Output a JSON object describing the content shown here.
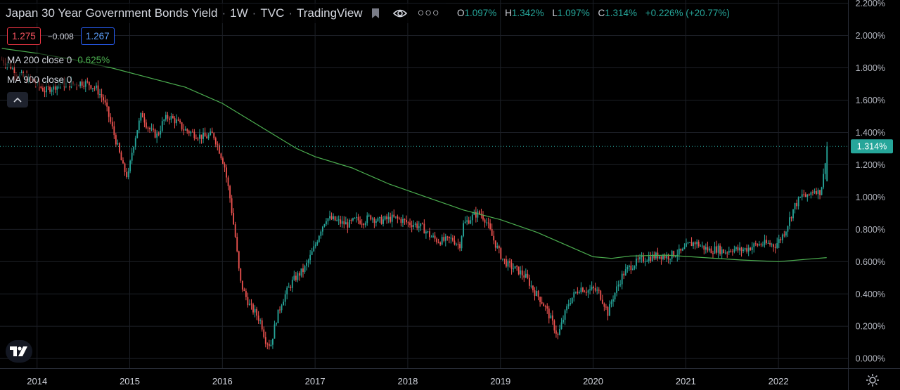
{
  "header": {
    "title": "Japan 30 Year Government Bonds Yield",
    "interval": "1W",
    "source": "TVC",
    "platform": "TradingView",
    "icons": [
      "flag-icon",
      "eye-icon",
      "more-icon"
    ]
  },
  "ohlc": {
    "open_label": "O",
    "open_value": "1.097%",
    "high_label": "H",
    "high_value": "1.342%",
    "low_label": "L",
    "low_value": "1.097%",
    "close_label": "C",
    "close_value": "1.314%",
    "change": "+0.226% (+20.77%)"
  },
  "prices": {
    "bid": "1.275",
    "spread": "−0.008",
    "ask": "1.267"
  },
  "indicators": {
    "ma200_label": "MA 200 close 0",
    "ma200_value": "0.625%",
    "ma900_label": "MA 900 close 0"
  },
  "colors": {
    "up": "#26a69a",
    "down": "#ef5350",
    "ma200": "#4caf50",
    "last_price_bg": "#26a69a",
    "grid": "#1c1f26",
    "text": "#d1d4dc",
    "background": "#000000"
  },
  "chart_data": {
    "type": "candlestick",
    "interval": "1W",
    "x_ticks": [
      "2014",
      "2015",
      "2016",
      "2017",
      "2018",
      "2019",
      "2020",
      "2021",
      "2022"
    ],
    "x_range": [
      2013.6,
      2022.75
    ],
    "y_ticks": [
      "0.000%",
      "0.200%",
      "0.400%",
      "0.600%",
      "0.800%",
      "1.000%",
      "1.200%",
      "1.400%",
      "1.600%",
      "1.800%",
      "2.000%",
      "2.200%"
    ],
    "ylim": [
      -0.06,
      2.22
    ],
    "last_price": 1.314,
    "last_price_label": "1.314%",
    "series_close": [
      [
        2013.62,
        1.85
      ],
      [
        2013.7,
        1.82
      ],
      [
        2013.78,
        1.76
      ],
      [
        2013.86,
        1.74
      ],
      [
        2013.94,
        1.72
      ],
      [
        2014.0,
        1.7
      ],
      [
        2014.08,
        1.66
      ],
      [
        2014.16,
        1.68
      ],
      [
        2014.24,
        1.7
      ],
      [
        2014.32,
        1.7
      ],
      [
        2014.4,
        1.7
      ],
      [
        2014.48,
        1.71
      ],
      [
        2014.56,
        1.7
      ],
      [
        2014.64,
        1.67
      ],
      [
        2014.72,
        1.6
      ],
      [
        2014.8,
        1.45
      ],
      [
        2014.86,
        1.33
      ],
      [
        2014.93,
        1.18
      ],
      [
        2014.98,
        1.12
      ],
      [
        2015.03,
        1.3
      ],
      [
        2015.08,
        1.42
      ],
      [
        2015.13,
        1.52
      ],
      [
        2015.18,
        1.45
      ],
      [
        2015.24,
        1.4
      ],
      [
        2015.3,
        1.38
      ],
      [
        2015.36,
        1.47
      ],
      [
        2015.42,
        1.5
      ],
      [
        2015.5,
        1.47
      ],
      [
        2015.58,
        1.42
      ],
      [
        2015.66,
        1.4
      ],
      [
        2015.74,
        1.38
      ],
      [
        2015.82,
        1.37
      ],
      [
        2015.9,
        1.39
      ],
      [
        2015.96,
        1.3
      ],
      [
        2016.02,
        1.2
      ],
      [
        2016.08,
        1.0
      ],
      [
        2016.14,
        0.75
      ],
      [
        2016.19,
        0.48
      ],
      [
        2016.24,
        0.4
      ],
      [
        2016.3,
        0.32
      ],
      [
        2016.36,
        0.28
      ],
      [
        2016.42,
        0.22
      ],
      [
        2016.46,
        0.12
      ],
      [
        2016.52,
        0.08
      ],
      [
        2016.58,
        0.24
      ],
      [
        2016.64,
        0.35
      ],
      [
        2016.7,
        0.42
      ],
      [
        2016.76,
        0.48
      ],
      [
        2016.82,
        0.52
      ],
      [
        2016.88,
        0.55
      ],
      [
        2016.94,
        0.62
      ],
      [
        2017.0,
        0.7
      ],
      [
        2017.06,
        0.8
      ],
      [
        2017.12,
        0.87
      ],
      [
        2017.2,
        0.86
      ],
      [
        2017.28,
        0.84
      ],
      [
        2017.36,
        0.83
      ],
      [
        2017.44,
        0.86
      ],
      [
        2017.52,
        0.85
      ],
      [
        2017.6,
        0.88
      ],
      [
        2017.68,
        0.85
      ],
      [
        2017.76,
        0.86
      ],
      [
        2017.84,
        0.87
      ],
      [
        2017.92,
        0.86
      ],
      [
        2018.0,
        0.84
      ],
      [
        2018.08,
        0.83
      ],
      [
        2018.16,
        0.81
      ],
      [
        2018.24,
        0.76
      ],
      [
        2018.32,
        0.73
      ],
      [
        2018.4,
        0.73
      ],
      [
        2018.48,
        0.74
      ],
      [
        2018.56,
        0.7
      ],
      [
        2018.6,
        0.83
      ],
      [
        2018.66,
        0.86
      ],
      [
        2018.72,
        0.89
      ],
      [
        2018.78,
        0.9
      ],
      [
        2018.84,
        0.86
      ],
      [
        2018.9,
        0.77
      ],
      [
        2018.96,
        0.69
      ],
      [
        2019.02,
        0.62
      ],
      [
        2019.08,
        0.58
      ],
      [
        2019.14,
        0.56
      ],
      [
        2019.2,
        0.54
      ],
      [
        2019.28,
        0.5
      ],
      [
        2019.36,
        0.42
      ],
      [
        2019.44,
        0.36
      ],
      [
        2019.5,
        0.3
      ],
      [
        2019.56,
        0.22
      ],
      [
        2019.62,
        0.14
      ],
      [
        2019.68,
        0.25
      ],
      [
        2019.74,
        0.35
      ],
      [
        2019.8,
        0.4
      ],
      [
        2019.86,
        0.44
      ],
      [
        2019.94,
        0.42
      ],
      [
        2020.0,
        0.43
      ],
      [
        2020.06,
        0.41
      ],
      [
        2020.12,
        0.34
      ],
      [
        2020.16,
        0.28
      ],
      [
        2020.2,
        0.36
      ],
      [
        2020.26,
        0.44
      ],
      [
        2020.32,
        0.52
      ],
      [
        2020.4,
        0.57
      ],
      [
        2020.48,
        0.6
      ],
      [
        2020.56,
        0.62
      ],
      [
        2020.64,
        0.63
      ],
      [
        2020.72,
        0.64
      ],
      [
        2020.8,
        0.63
      ],
      [
        2020.88,
        0.65
      ],
      [
        2020.96,
        0.66
      ],
      [
        2021.02,
        0.7
      ],
      [
        2021.1,
        0.72
      ],
      [
        2021.18,
        0.69
      ],
      [
        2021.26,
        0.67
      ],
      [
        2021.34,
        0.68
      ],
      [
        2021.42,
        0.66
      ],
      [
        2021.5,
        0.68
      ],
      [
        2021.58,
        0.67
      ],
      [
        2021.66,
        0.68
      ],
      [
        2021.74,
        0.7
      ],
      [
        2021.82,
        0.71
      ],
      [
        2021.9,
        0.71
      ],
      [
        2021.96,
        0.7
      ],
      [
        2022.02,
        0.74
      ],
      [
        2022.08,
        0.8
      ],
      [
        2022.13,
        0.88
      ],
      [
        2022.18,
        0.95
      ],
      [
        2022.22,
        0.98
      ],
      [
        2022.27,
        1.02
      ],
      [
        2022.31,
        0.99
      ],
      [
        2022.35,
        1.03
      ],
      [
        2022.4,
        1.05
      ],
      [
        2022.44,
        1.02
      ],
      [
        2022.48,
        1.1
      ],
      [
        2022.52,
        1.314
      ]
    ],
    "ma200": [
      [
        2013.62,
        1.92
      ],
      [
        2014.0,
        1.89
      ],
      [
        2014.4,
        1.85
      ],
      [
        2014.8,
        1.8
      ],
      [
        2015.2,
        1.74
      ],
      [
        2015.6,
        1.68
      ],
      [
        2016.0,
        1.58
      ],
      [
        2016.4,
        1.44
      ],
      [
        2016.8,
        1.3
      ],
      [
        2017.0,
        1.25
      ],
      [
        2017.4,
        1.18
      ],
      [
        2017.8,
        1.08
      ],
      [
        2018.2,
        1.0
      ],
      [
        2018.6,
        0.92
      ],
      [
        2019.0,
        0.86
      ],
      [
        2019.4,
        0.78
      ],
      [
        2019.8,
        0.68
      ],
      [
        2020.0,
        0.63
      ],
      [
        2020.2,
        0.62
      ],
      [
        2020.4,
        0.635
      ],
      [
        2020.8,
        0.64
      ],
      [
        2021.2,
        0.625
      ],
      [
        2021.6,
        0.61
      ],
      [
        2022.0,
        0.6
      ],
      [
        2022.52,
        0.625
      ]
    ]
  }
}
